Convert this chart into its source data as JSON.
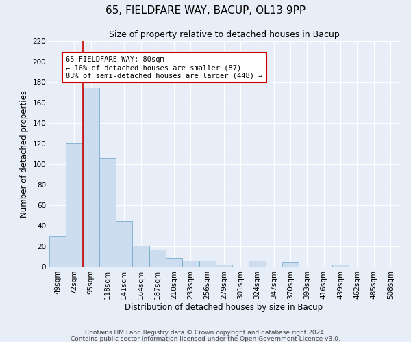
{
  "title": "65, FIELDFARE WAY, BACUP, OL13 9PP",
  "subtitle": "Size of property relative to detached houses in Bacup",
  "xlabel": "Distribution of detached houses by size in Bacup",
  "ylabel": "Number of detached properties",
  "categories": [
    "49sqm",
    "72sqm",
    "95sqm",
    "118sqm",
    "141sqm",
    "164sqm",
    "187sqm",
    "210sqm",
    "233sqm",
    "256sqm",
    "279sqm",
    "301sqm",
    "324sqm",
    "347sqm",
    "370sqm",
    "393sqm",
    "416sqm",
    "439sqm",
    "462sqm",
    "485sqm",
    "508sqm"
  ],
  "values": [
    30,
    121,
    175,
    106,
    45,
    21,
    17,
    9,
    6,
    6,
    2,
    0,
    6,
    0,
    5,
    0,
    0,
    2,
    0,
    0,
    0
  ],
  "bar_color": "#ccddf0",
  "bar_edge_color": "#7aadce",
  "vline_x": 1.5,
  "vline_color": "#cc0000",
  "annotation_title": "65 FIELDFARE WAY: 80sqm",
  "annotation_line1": "← 16% of detached houses are smaller (87)",
  "annotation_line2": "83% of semi-detached houses are larger (448) →",
  "annotation_box_color": "#ffffff",
  "annotation_box_edge": "#cc0000",
  "ylim": [
    0,
    220
  ],
  "yticks": [
    0,
    20,
    40,
    60,
    80,
    100,
    120,
    140,
    160,
    180,
    200,
    220
  ],
  "footer1": "Contains HM Land Registry data © Crown copyright and database right 2024.",
  "footer2": "Contains public sector information licensed under the Open Government Licence v3.0.",
  "bg_color": "#e8eef7",
  "plot_bg_color": "#e8eef7",
  "title_fontsize": 11,
  "subtitle_fontsize": 9,
  "axis_label_fontsize": 8.5,
  "tick_fontsize": 7.5,
  "footer_fontsize": 6.5
}
